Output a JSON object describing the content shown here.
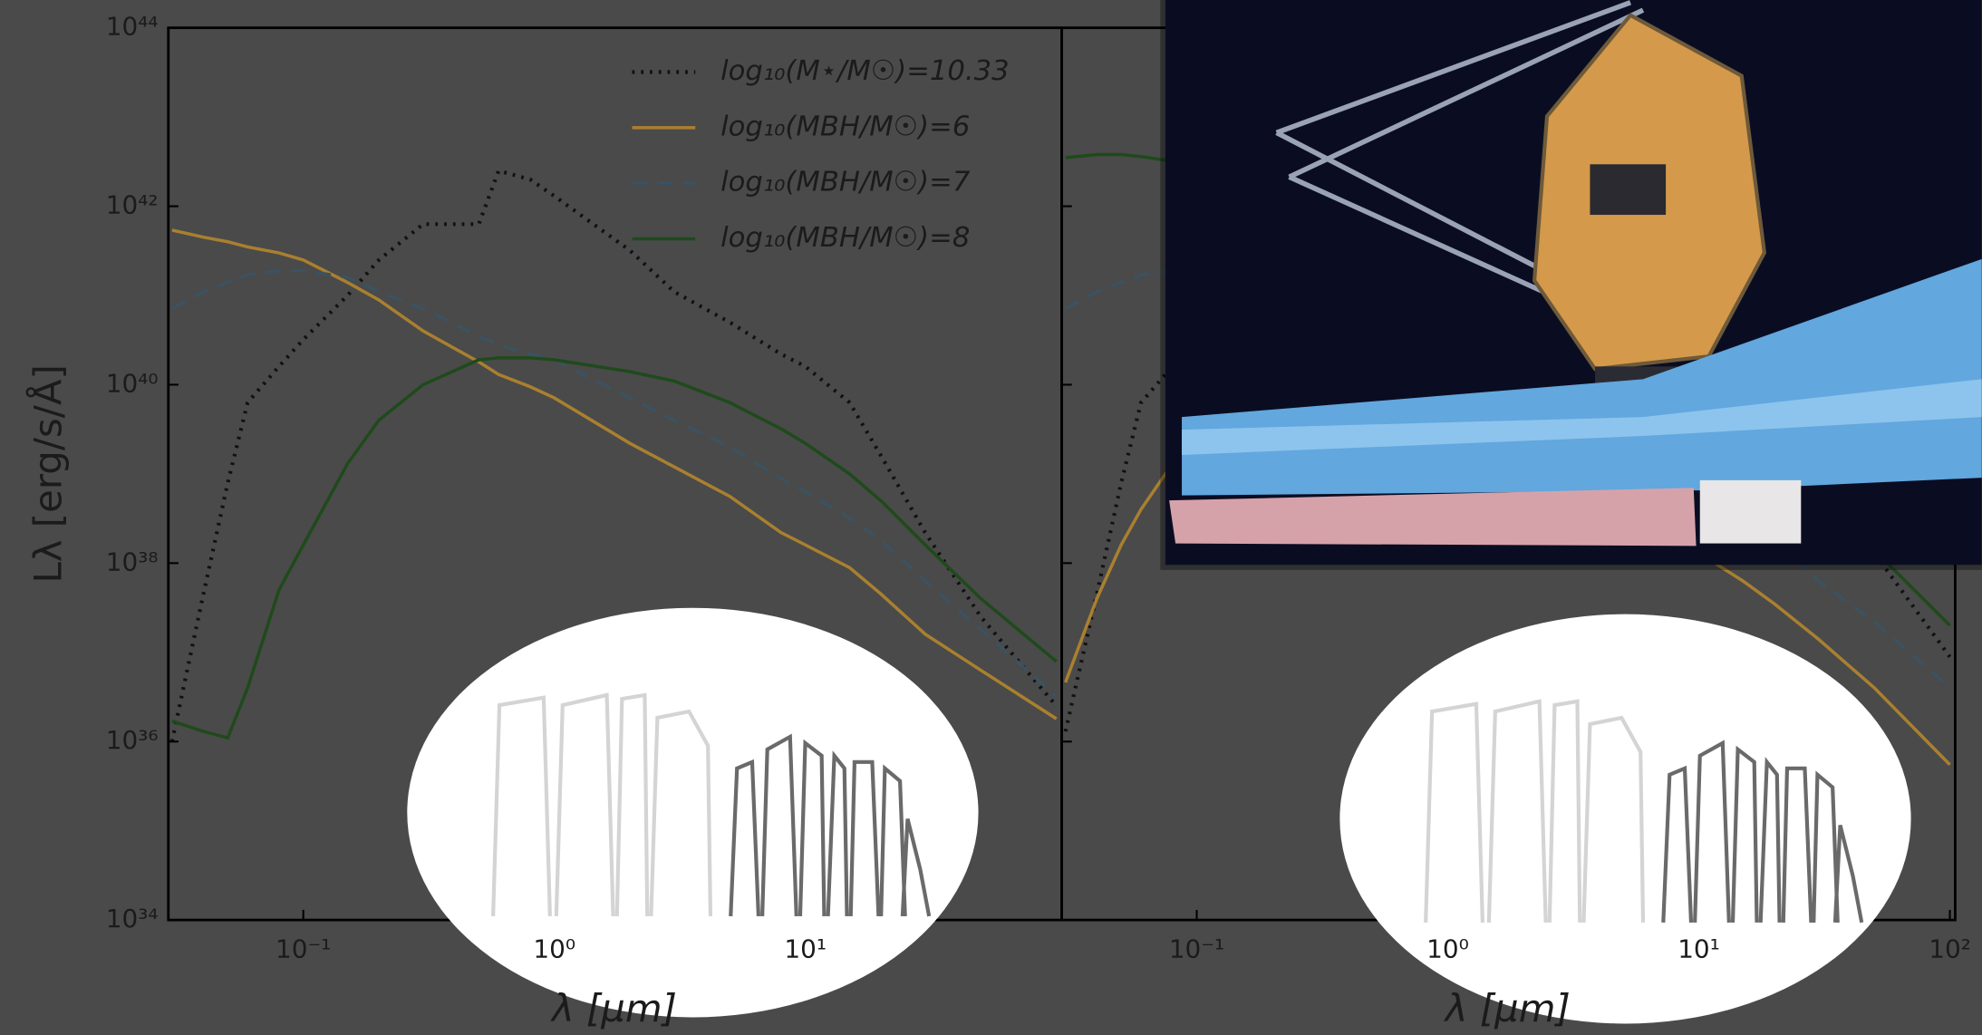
{
  "chart_data": [
    {
      "type": "line",
      "xscale": "log",
      "yscale": "log",
      "xlabel": "λ [μm]",
      "ylabel": "Lλ [erg/s/Å]",
      "xlim": [
        0.029,
        105
      ],
      "ylim": [
        1e+34,
        1e+44
      ],
      "xticks": [
        {
          "value": 0.1,
          "label": "10⁻¹"
        },
        {
          "value": 1,
          "label": "10⁰"
        },
        {
          "value": 10,
          "label": "10¹"
        }
      ],
      "yticks": [
        {
          "value": 1e+34,
          "label": "10³⁴"
        },
        {
          "value": 1e+36,
          "label": "10³⁶"
        },
        {
          "value": 1e+38,
          "label": "10³⁸"
        },
        {
          "value": 1e+40,
          "label": "10⁴⁰"
        },
        {
          "value": 1e+42,
          "label": "10⁴²"
        },
        {
          "value": 1e+44,
          "label": "10⁴⁴"
        }
      ],
      "legend": "upper right",
      "x": [
        0.03,
        0.04,
        0.05,
        0.06,
        0.08,
        0.1,
        0.15,
        0.2,
        0.3,
        0.5,
        0.6,
        0.8,
        1,
        2,
        3,
        5,
        8,
        10,
        15,
        20,
        30,
        50,
        100
      ],
      "series": [
        {
          "name": "log₁₀(M⋆/M☉)=10.33",
          "color": "#111111",
          "linestyle": "dotted",
          "values": [
            1e+36,
            4.5e+37,
            7.9e+38,
            6.3e+39,
            1.6e+40,
            3.2e+40,
            1e+41,
            2.5e+41,
            6.3e+41,
            6.3e+41,
            2.5e+42,
            2e+42,
            1.3e+42,
            3.2e+41,
            1.1e+41,
            5e+40,
            2.2e+40,
            1.6e+40,
            6.3e+39,
            1.6e+39,
            2.2e+38,
            2.5e+37,
            2.5e+36
          ]
        },
        {
          "name": "log₁₀(MBH/M☉)=6",
          "color": "#a9802f",
          "linestyle": "solid",
          "values": [
            5.4e+41,
            4.5e+41,
            4e+41,
            3.5e+41,
            3e+41,
            2.5e+41,
            1.4e+41,
            8.9e+40,
            4e+40,
            1.8e+40,
            1.3e+40,
            9.5e+39,
            7.1e+39,
            2.2e+39,
            1.2e+39,
            5.6e+38,
            2.2e+38,
            1.6e+38,
            8.9e+37,
            4.5e+37,
            1.6e+37,
            6.3e+36,
            1.8e+36
          ]
        },
        {
          "name": "log₁₀(MBH/M☉)=7",
          "color": "#3b5261",
          "linestyle": "dashed",
          "values": [
            7.1e+40,
            1.1e+41,
            1.4e+41,
            1.7e+41,
            1.9e+41,
            1.9e+41,
            1.6e+41,
            1.1e+41,
            7.1e+40,
            3.5e+40,
            2.8e+40,
            2.2e+40,
            1.9e+40,
            7.1e+39,
            4e+39,
            2e+39,
            8.9e+38,
            6.3e+38,
            3.2e+38,
            1.8e+38,
            6.3e+37,
            1.8e+37,
            3.2e+36
          ]
        },
        {
          "name": "log₁₀(MBH/M☉)=8",
          "color": "#1f4a1b",
          "linestyle": "solid",
          "values": [
            1.7e+36,
            1.3e+36,
            1.1e+36,
            4e+36,
            5e+37,
            1.6e+38,
            1.3e+39,
            4e+39,
            1e+40,
            1.9e+40,
            2e+40,
            2e+40,
            1.9e+40,
            1.4e+40,
            1.1e+40,
            6.3e+39,
            3.2e+39,
            2.2e+39,
            1e+39,
            5e+38,
            1.6e+38,
            4e+37,
            7.9e+36
          ]
        }
      ]
    },
    {
      "type": "line",
      "xscale": "log",
      "yscale": "log",
      "xlabel": "λ [μm]",
      "xlim": [
        0.029,
        105
      ],
      "ylim": [
        1e+34,
        1e+44
      ],
      "xticks": [
        {
          "value": 0.1,
          "label": "10⁻¹"
        },
        {
          "value": 1,
          "label": "10⁰"
        },
        {
          "value": 10,
          "label": "10¹"
        },
        {
          "value": 100,
          "label": "10²"
        }
      ],
      "yticks": [
        1e+34,
        1e+36,
        1e+38,
        1e+40,
        1e+42,
        1e+44
      ],
      "x": [
        0.03,
        0.04,
        0.05,
        0.06,
        0.08,
        0.1,
        0.15,
        0.2,
        0.3,
        0.5,
        0.6,
        0.8,
        1,
        2,
        3,
        5,
        8,
        10,
        15,
        20,
        30,
        50,
        100
      ],
      "series": [
        {
          "color": "#111111",
          "linestyle": "dotted",
          "values": [
            1.3e+36,
            4.5e+37,
            7.9e+38,
            6.3e+39,
            1.6e+40,
            3.2e+40,
            1e+41,
            2.5e+41,
            6.3e+41,
            6.3e+41,
            2.5e+42,
            2e+42,
            1.3e+42,
            3.2e+41,
            1.1e+41,
            5e+40,
            2.2e+40,
            1.6e+40,
            6.3e+39,
            2.5e+39,
            7.9e+38,
            1.3e+38,
            8.9e+36
          ]
        },
        {
          "color": "#a9802f",
          "linestyle": "solid",
          "values": [
            4.6e+36,
            4e+37,
            1.6e+38,
            4e+38,
            1.3e+39,
            2.5e+39,
            5.6e+39,
            7.9e+39,
            8.9e+39,
            7.1e+39,
            6.3e+39,
            5e+39,
            4e+39,
            1.6e+39,
            8.9e+38,
            4e+38,
            1.8e+38,
            1.3e+38,
            6.3e+37,
            3.5e+37,
            1.4e+37,
            4e+36,
            5.5e+35
          ]
        },
        {
          "color": "#3b5261",
          "linestyle": "dashed",
          "values": [
            7.1e+40,
            1.1e+41,
            1.4e+41,
            1.7e+41,
            1.9e+41,
            1.9e+41,
            1.6e+41,
            1.1e+41,
            7.1e+40,
            3.5e+40,
            2.8e+40,
            2.2e+40,
            1.9e+40,
            7.1e+39,
            4e+39,
            2e+39,
            8.9e+38,
            6.3e+38,
            3.2e+38,
            1.8e+38,
            6.3e+37,
            2.2e+37,
            4e+36
          ]
        },
        {
          "color": "#1f4a1b",
          "linestyle": "solid",
          "values": [
            3.5e+42,
            3.8e+42,
            3.8e+42,
            3.6e+42,
            3.2e+42,
            2.8e+42,
            2.2e+42,
            1.8e+42,
            1.1e+42,
            6.3e+41,
            5e+41,
            3.5e+41,
            2.8e+41,
            1e+41,
            5e+40,
            2e+40,
            7.9e+39,
            5e+39,
            2e+39,
            1e+39,
            4e+38,
            1.4e+38,
            2e+37
          ]
        }
      ]
    }
  ]
}
